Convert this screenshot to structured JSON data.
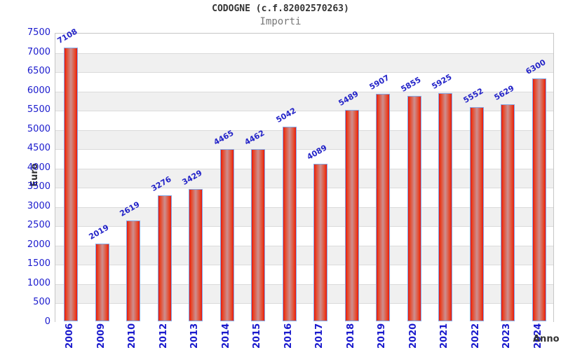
{
  "header": {
    "title": "CODOGNE (c.f.82002570263)",
    "subtitle": "Importi"
  },
  "chart_data": {
    "type": "bar",
    "title": "CODOGNE (c.f.82002570263)",
    "subtitle": "Importi",
    "categories": [
      "2006",
      "2009",
      "2010",
      "2012",
      "2013",
      "2014",
      "2015",
      "2016",
      "2017",
      "2018",
      "2019",
      "2020",
      "2021",
      "2022",
      "2023",
      "2024"
    ],
    "values": [
      7108,
      2019,
      2619,
      3276,
      3429,
      4465,
      4462,
      5042,
      4089,
      5489,
      5907,
      5855,
      5925,
      5552,
      5629,
      6300
    ],
    "xlabel": "Anno",
    "ylabel": "Euro",
    "ylim": [
      0,
      7500
    ],
    "yticks": [
      0,
      500,
      1000,
      1500,
      2000,
      2500,
      3000,
      3500,
      4000,
      4500,
      5000,
      5500,
      6000,
      6500,
      7000,
      7500
    ],
    "legend": "none",
    "grid": "horizontal-stripes",
    "colors": {
      "bar_fill_edge": "#e41414",
      "bar_fill_center": "#cd8f8f",
      "bar_border": "#84aae6",
      "value_label": "#2424c8",
      "axis_tick_text": "#1a1acd",
      "axis_title_text": "#333333",
      "stripe_gray": "#f0f0f0",
      "gridline": "#dadada",
      "plot_border": "#c6c6c6"
    }
  }
}
